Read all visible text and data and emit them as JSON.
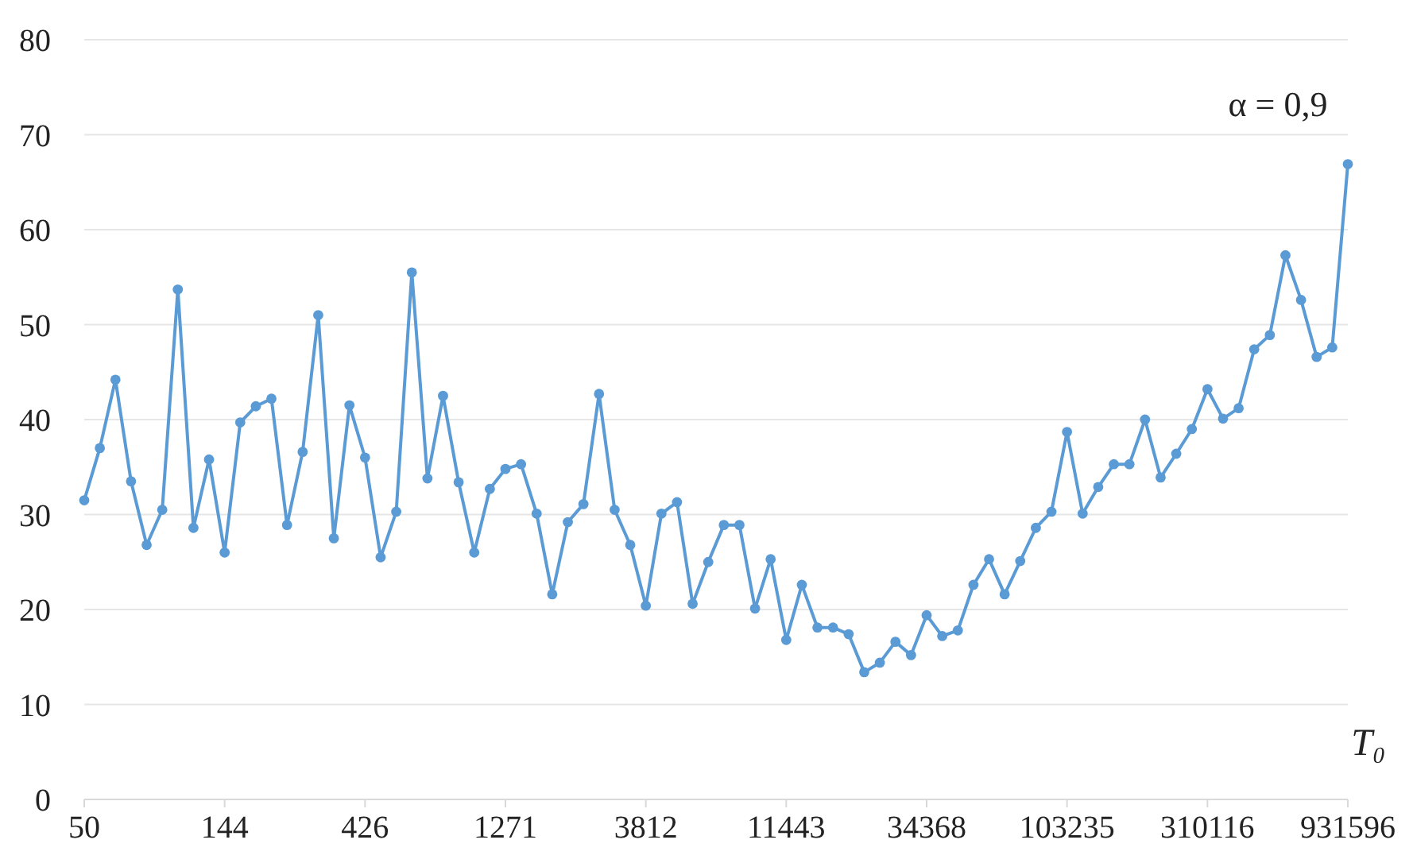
{
  "chart_data": {
    "type": "line",
    "xlabel": "T₀",
    "annotations": [
      "α = 0,9"
    ],
    "categories": [
      "50",
      null,
      null,
      null,
      null,
      null,
      null,
      null,
      null,
      "144",
      null,
      null,
      null,
      null,
      null,
      null,
      null,
      null,
      "426",
      null,
      null,
      null,
      null,
      null,
      null,
      null,
      null,
      "1271",
      null,
      null,
      null,
      null,
      null,
      null,
      null,
      null,
      "3812",
      null,
      null,
      null,
      null,
      null,
      null,
      null,
      null,
      "11443",
      null,
      null,
      null,
      null,
      null,
      null,
      null,
      null,
      "34368",
      null,
      null,
      null,
      null,
      null,
      null,
      null,
      null,
      "103235",
      null,
      null,
      null,
      null,
      null,
      null,
      null,
      null,
      "310116",
      null,
      null,
      null,
      null,
      null,
      null,
      null,
      null,
      "931596"
    ],
    "series": [
      {
        "color": "#5b9bd5",
        "values": [
          31.5,
          37,
          44.2,
          33.5,
          26.8,
          30.5,
          53.7,
          28.6,
          35.8,
          26,
          39.7,
          41.4,
          42.2,
          28.9,
          36.6,
          51,
          27.5,
          41.5,
          36,
          25.5,
          30.3,
          55.5,
          33.8,
          42.5,
          33.4,
          26,
          32.7,
          34.8,
          35.3,
          30.1,
          21.6,
          29.2,
          31.1,
          42.7,
          30.5,
          26.8,
          20.4,
          30.1,
          31.3,
          20.6,
          25,
          28.9,
          28.9,
          20.1,
          25.3,
          16.8,
          22.6,
          18.1,
          18.1,
          17.4,
          13.4,
          14.4,
          16.6,
          15.2,
          19.4,
          17.2,
          17.8,
          22.6,
          25.3,
          21.6,
          25.1,
          28.6,
          30.3,
          38.7,
          30.1,
          32.9,
          35.3,
          35.3,
          40,
          33.9,
          36.4,
          39,
          43.2,
          40.1,
          41.2,
          47.4,
          48.9,
          57.3,
          52.6,
          46.6,
          47.6,
          66.9
        ]
      }
    ],
    "ylim": [
      0,
      80
    ],
    "yticks": [
      0,
      10,
      20,
      30,
      40,
      50,
      60,
      70,
      80
    ],
    "grid": "y",
    "marker": "circle",
    "line_style": "solid"
  }
}
